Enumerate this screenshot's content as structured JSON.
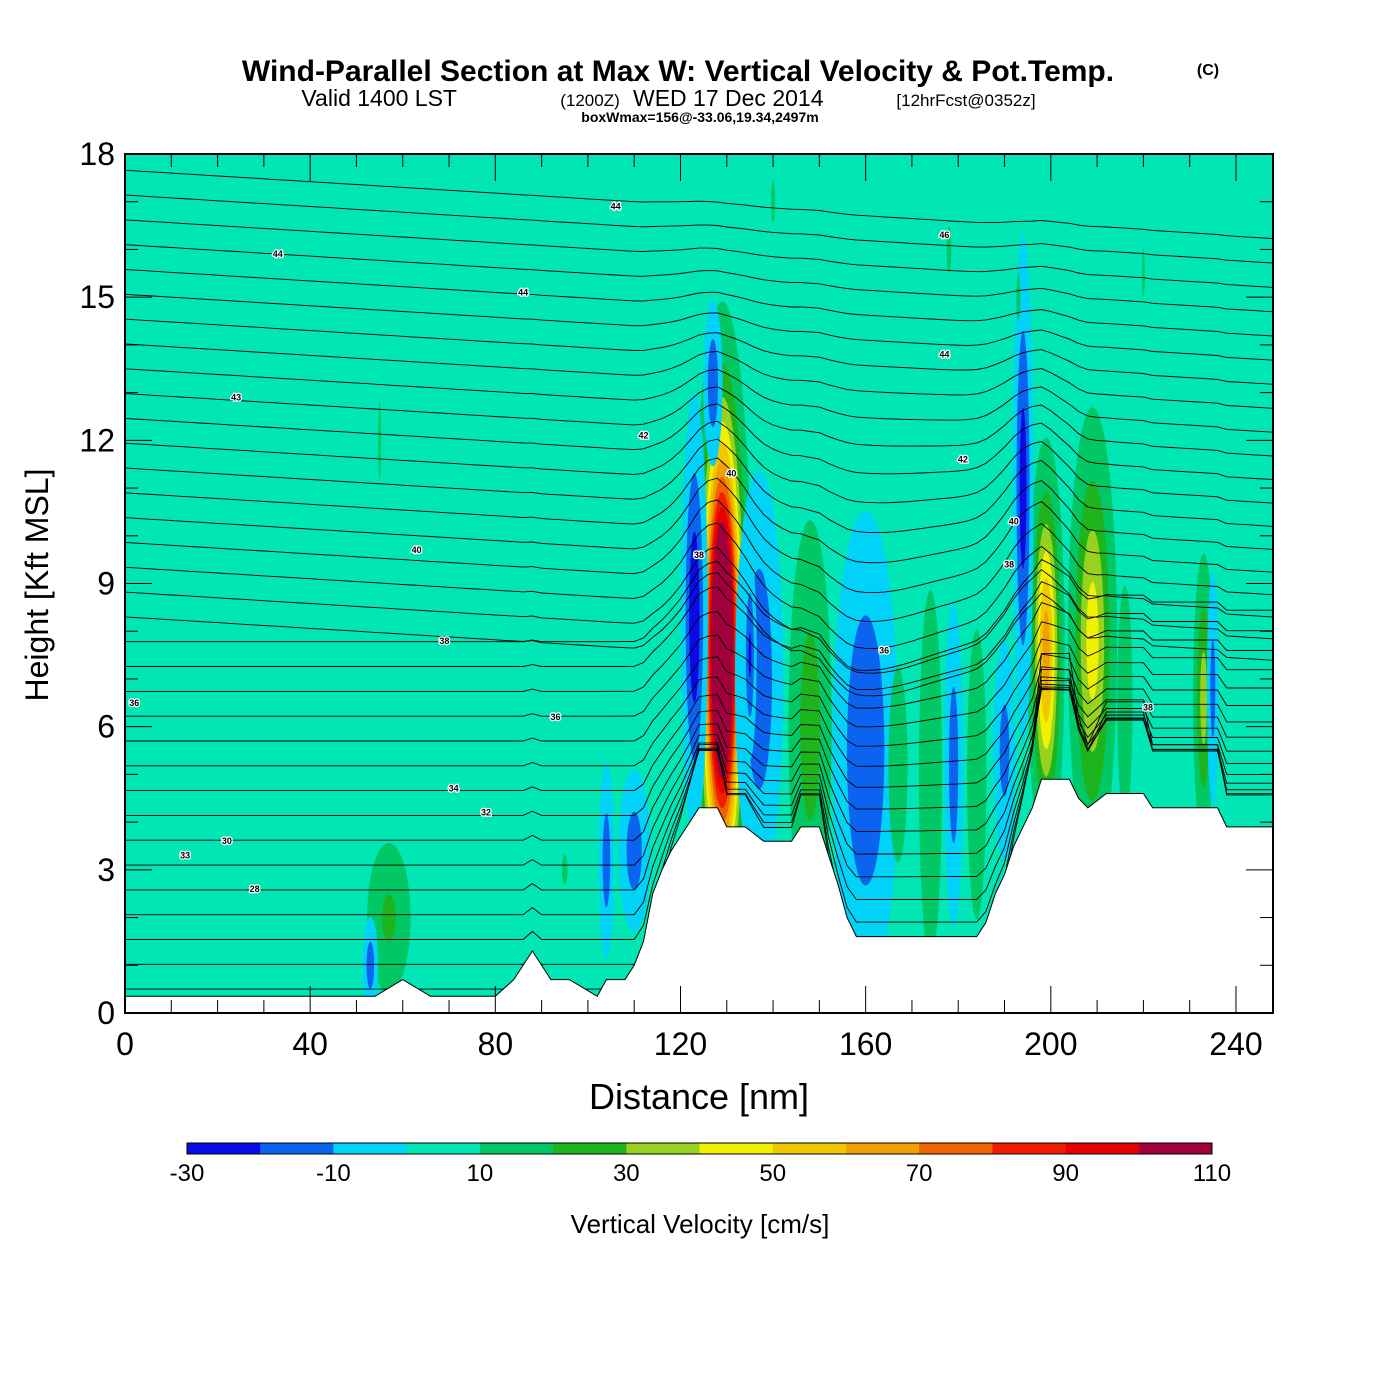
{
  "header": {
    "title": "Wind-Parallel Section at Max W: Vertical Velocity & Pot.Temp.",
    "copyright": "(C)",
    "valid_main": "Valid 1400 LST",
    "valid_utc": "(1200Z)",
    "valid_date": "WED 17 Dec 2014",
    "forecast": "[12hrFcst@0352z]",
    "box_info": "boxWmax=156@-33.06,19.34,2497m"
  },
  "chart_data": {
    "type": "heatmap",
    "title": "Wind-Parallel Section at Max W: Vertical Velocity & Pot.Temp.",
    "xlabel": "Distance [nm]",
    "ylabel": "Height [Kft MSL]",
    "xlim": [
      0,
      248
    ],
    "ylim": [
      0,
      18
    ],
    "x_ticks": [
      0,
      40,
      80,
      120,
      160,
      200,
      240
    ],
    "y_ticks": [
      0,
      3,
      6,
      9,
      12,
      15,
      18
    ],
    "x_tick_labels": [
      "0",
      "40",
      "80",
      "120",
      "160",
      "200",
      "240"
    ],
    "y_tick_labels": [
      "0",
      "3",
      "6",
      "9",
      "12",
      "15",
      "18"
    ],
    "colorbar": {
      "label": "Vertical Velocity [cm/s]",
      "boundaries": [
        -30,
        -20,
        -10,
        0,
        10,
        20,
        30,
        40,
        50,
        60,
        70,
        80,
        90,
        100,
        110
      ],
      "tick_labels": [
        "-30",
        "-10",
        "10",
        "30",
        "50",
        "70",
        "90",
        "110"
      ],
      "colors": [
        "#0a0ae8",
        "#0a64f0",
        "#00d2f8",
        "#00e6b4",
        "#00c864",
        "#1eb41e",
        "#96d21e",
        "#f0f000",
        "#f0c800",
        "#f0a000",
        "#f06400",
        "#f01e00",
        "#e80000",
        "#a0003c"
      ]
    },
    "terrain": [
      [
        0,
        0.35
      ],
      [
        54,
        0.35
      ],
      [
        54,
        0.35
      ],
      [
        60,
        0.7
      ],
      [
        66,
        0.35
      ],
      [
        80,
        0.35
      ],
      [
        84,
        0.7
      ],
      [
        88,
        1.3
      ],
      [
        92,
        0.7
      ],
      [
        96,
        0.7
      ],
      [
        102,
        0.35
      ],
      [
        104,
        0.7
      ],
      [
        108,
        0.7
      ],
      [
        110,
        1.0
      ],
      [
        112,
        1.5
      ],
      [
        114,
        2.5
      ],
      [
        116,
        3.0
      ],
      [
        118,
        3.4
      ],
      [
        120,
        3.7
      ],
      [
        122,
        4.0
      ],
      [
        124,
        4.3
      ],
      [
        128,
        4.3
      ],
      [
        130,
        3.9
      ],
      [
        134,
        3.9
      ],
      [
        138,
        3.6
      ],
      [
        144,
        3.6
      ],
      [
        146,
        3.9
      ],
      [
        150,
        3.9
      ],
      [
        152,
        3.3
      ],
      [
        154,
        2.7
      ],
      [
        156,
        2.0
      ],
      [
        158,
        1.6
      ],
      [
        166,
        1.6
      ],
      [
        174,
        1.6
      ],
      [
        184,
        1.6
      ],
      [
        186,
        1.9
      ],
      [
        188,
        2.5
      ],
      [
        190,
        2.9
      ],
      [
        192,
        3.5
      ],
      [
        194,
        3.9
      ],
      [
        196,
        4.3
      ],
      [
        198,
        4.9
      ],
      [
        204,
        4.9
      ],
      [
        206,
        4.5
      ],
      [
        208,
        4.3
      ],
      [
        212,
        4.6
      ],
      [
        220,
        4.6
      ],
      [
        222,
        4.3
      ],
      [
        230,
        4.3
      ],
      [
        236,
        4.3
      ],
      [
        238,
        3.9
      ],
      [
        248,
        3.9
      ]
    ],
    "w_background": 5,
    "w_cells": [
      {
        "x": 129,
        "y": 7.6,
        "sx": 2.5,
        "sy": 2.8,
        "value": 156
      },
      {
        "x": 123,
        "y": 8.3,
        "sx": 1.5,
        "sy": 2.4,
        "value": -28
      },
      {
        "x": 127,
        "y": 13.2,
        "sx": 1.2,
        "sy": 1.0,
        "value": -18
      },
      {
        "x": 137,
        "y": 7.0,
        "sx": 3.0,
        "sy": 2.5,
        "value": -18
      },
      {
        "x": 135,
        "y": 7.5,
        "sx": 0.8,
        "sy": 1.2,
        "value": -22
      },
      {
        "x": 148,
        "y": 6.0,
        "sx": 2.8,
        "sy": 2.6,
        "value": 25
      },
      {
        "x": 160,
        "y": 5.5,
        "sx": 4.0,
        "sy": 2.8,
        "value": -20
      },
      {
        "x": 167,
        "y": 5.2,
        "sx": 2.5,
        "sy": 2.5,
        "value": 12
      },
      {
        "x": 174,
        "y": 5.0,
        "sx": 1.8,
        "sy": 2.8,
        "value": 18
      },
      {
        "x": 179,
        "y": 5.2,
        "sx": 1.2,
        "sy": 2.0,
        "value": -16
      },
      {
        "x": 184,
        "y": 5.0,
        "sx": 1.5,
        "sy": 2.2,
        "value": 18
      },
      {
        "x": 190,
        "y": 5.5,
        "sx": 1.5,
        "sy": 1.4,
        "value": -14
      },
      {
        "x": 194,
        "y": 5.0,
        "sx": 1.2,
        "sy": 1.2,
        "value": 10
      },
      {
        "x": 199,
        "y": 7.6,
        "sx": 1.8,
        "sy": 2.0,
        "value": 65
      },
      {
        "x": 194,
        "y": 11.0,
        "sx": 1.2,
        "sy": 2.8,
        "value": -25
      },
      {
        "x": 209,
        "y": 7.8,
        "sx": 2.6,
        "sy": 2.4,
        "value": 45
      },
      {
        "x": 216,
        "y": 6.5,
        "sx": 2.0,
        "sy": 3.0,
        "value": 12
      },
      {
        "x": 233,
        "y": 6.6,
        "sx": 1.2,
        "sy": 1.6,
        "value": 35
      },
      {
        "x": 235,
        "y": 6.8,
        "sx": 0.8,
        "sy": 1.5,
        "value": -14
      },
      {
        "x": 57,
        "y": 2.0,
        "sx": 3.0,
        "sy": 1.0,
        "value": 22
      },
      {
        "x": 53,
        "y": 1.0,
        "sx": 1.0,
        "sy": 0.6,
        "value": -16
      },
      {
        "x": 95,
        "y": 3.0,
        "sx": 3.0,
        "sy": 1.6,
        "value": 10
      },
      {
        "x": 104,
        "y": 3.2,
        "sx": 1.0,
        "sy": 1.2,
        "value": -16
      },
      {
        "x": 110,
        "y": 3.4,
        "sx": 2.0,
        "sy": 1.0,
        "value": -16
      },
      {
        "x": 55,
        "y": 12.0,
        "sx": 1.6,
        "sy": 4.0,
        "value": 10
      },
      {
        "x": 140,
        "y": 17.0,
        "sx": 2.0,
        "sy": 2.2,
        "value": 10
      },
      {
        "x": 178,
        "y": 16.0,
        "sx": 2.5,
        "sy": 2.4,
        "value": 10
      },
      {
        "x": 193,
        "y": 15.0,
        "sx": 2.2,
        "sy": 2.5,
        "value": 10
      },
      {
        "x": 220,
        "y": 15.5,
        "sx": 1.5,
        "sy": 2.5,
        "value": 10
      }
    ],
    "theta_labels": [
      {
        "x": 33,
        "y": 15.9,
        "text": "44"
      },
      {
        "x": 106,
        "y": 16.9,
        "text": "44"
      },
      {
        "x": 86,
        "y": 15.1,
        "text": "44"
      },
      {
        "x": 177,
        "y": 16.3,
        "text": "46"
      },
      {
        "x": 177,
        "y": 13.8,
        "text": "44"
      },
      {
        "x": 24,
        "y": 12.9,
        "text": "43"
      },
      {
        "x": 112,
        "y": 12.1,
        "text": "42"
      },
      {
        "x": 131,
        "y": 11.3,
        "text": "40"
      },
      {
        "x": 181,
        "y": 11.6,
        "text": "42"
      },
      {
        "x": 63,
        "y": 9.7,
        "text": "40"
      },
      {
        "x": 124,
        "y": 9.6,
        "text": "38"
      },
      {
        "x": 192,
        "y": 10.3,
        "text": "40"
      },
      {
        "x": 191,
        "y": 9.4,
        "text": "38"
      },
      {
        "x": 69,
        "y": 7.8,
        "text": "38"
      },
      {
        "x": 164,
        "y": 7.6,
        "text": "36"
      },
      {
        "x": 2,
        "y": 6.5,
        "text": "36"
      },
      {
        "x": 93,
        "y": 6.2,
        "text": "36"
      },
      {
        "x": 221,
        "y": 6.4,
        "text": "38"
      },
      {
        "x": 71,
        "y": 4.7,
        "text": "34"
      },
      {
        "x": 78,
        "y": 4.2,
        "text": "32"
      },
      {
        "x": 22,
        "y": 3.6,
        "text": "30"
      },
      {
        "x": 13,
        "y": 3.3,
        "text": "33"
      },
      {
        "x": 28,
        "y": 2.6,
        "text": "28"
      }
    ]
  }
}
